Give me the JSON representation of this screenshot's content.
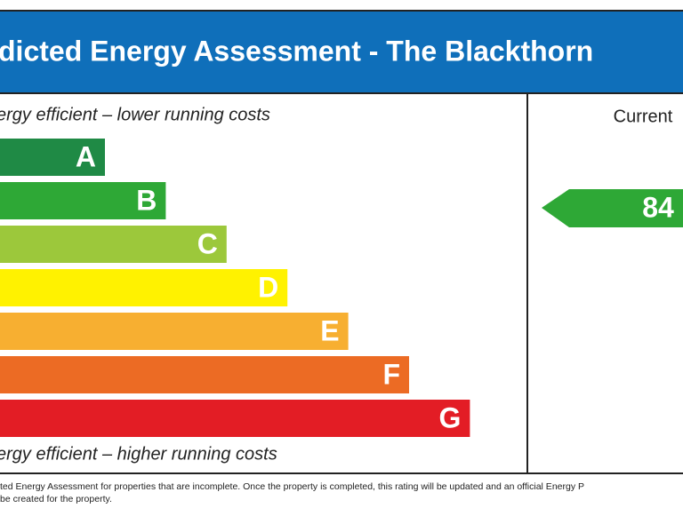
{
  "header": {
    "title": "dicted Energy Assessment - The Blackthorn"
  },
  "scale": {
    "top_note": "ergy efficient – lower running costs",
    "bottom_note": "ergy efficient – higher running costs",
    "bands": [
      {
        "letter": "A",
        "color": "#1f8a45"
      },
      {
        "letter": "B",
        "color": "#2ea836"
      },
      {
        "letter": "C",
        "color": "#9cc83b"
      },
      {
        "letter": "D",
        "color": "#fff200"
      },
      {
        "letter": "E",
        "color": "#f7af31"
      },
      {
        "letter": "F",
        "color": "#ec6b24"
      },
      {
        "letter": "G",
        "color": "#e31d25"
      }
    ]
  },
  "current": {
    "label": "Current",
    "rating": 84,
    "color": "#2ea836"
  },
  "footer": {
    "lines": [
      "ted Energy Assessment for properties that are incomplete. Once the property is completed, this rating will be updated and an official Energy P",
      "be created for the property."
    ]
  }
}
